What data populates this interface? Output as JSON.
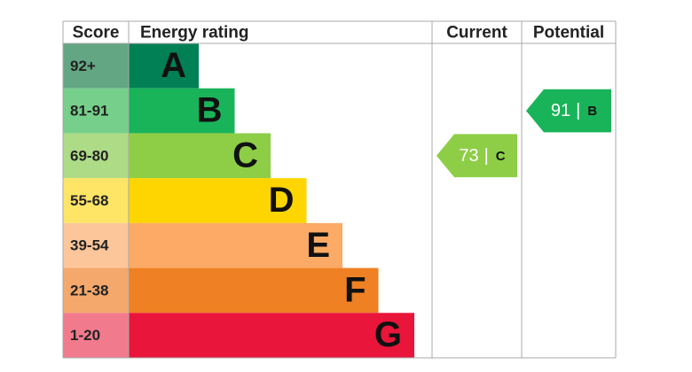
{
  "headers": [
    "Score",
    "Energy rating",
    "Current",
    "Potential"
  ],
  "bands": [
    {
      "score": "92+",
      "letter": "A",
      "score_color": "#63a683",
      "color": "#008054"
    },
    {
      "score": "81-91",
      "letter": "B",
      "score_color": "#76cf8b",
      "color": "#19b459"
    },
    {
      "score": "69-80",
      "letter": "C",
      "score_color": "#aedb86",
      "color": "#8dce46"
    },
    {
      "score": "55-68",
      "letter": "D",
      "score_color": "#ffe566",
      "color": "#ffd500"
    },
    {
      "score": "39-54",
      "letter": "E",
      "score_color": "#fcc69a",
      "color": "#fcaa65"
    },
    {
      "score": "21-38",
      "letter": "F",
      "score_color": "#f4a86c",
      "color": "#ef8023"
    },
    {
      "score": "1-20",
      "letter": "G",
      "score_color": "#f27a8d",
      "color": "#e9153b"
    }
  ],
  "separator": "|",
  "current": {
    "value": 73,
    "band": "C"
  },
  "potential": {
    "value": 91,
    "band": "B"
  }
}
